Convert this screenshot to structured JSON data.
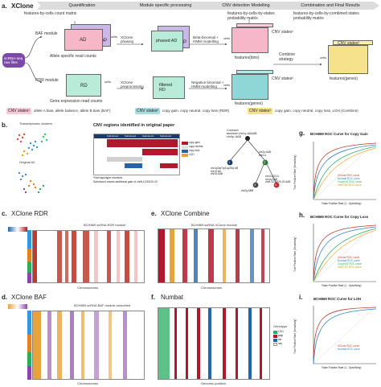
{
  "panel_a": {
    "letter": "a.",
    "title": "XClone",
    "stages": [
      "Quantification",
      "Module specific processing",
      "CNV detection Modelling",
      "Combination and Final Results"
    ],
    "matrix_top": "features-by-cells count matrix",
    "matrix_prob": "features-by-cells-by-states\nprobability matrix",
    "matrix_combined": "features-by-cells-by-combined states\nprobability matrix",
    "input_label": "scRNA-seq\nraw files",
    "baf_module": "BAF module",
    "rdr_module": "RDR module",
    "allele_counts": "Allele specific read counts",
    "gene_counts": "Gene expression read counts",
    "ad": "AD",
    "dp": "DP",
    "phased_ad": "phased AD",
    "rd": "RD",
    "filtered_rd": "filtered\nRD",
    "xclone_phasing": "XClone\nphasing",
    "xclone_preproc": "XClone\npreprocessing",
    "beta_binomial": "Beta-binomial +\nHMM modelling",
    "neg_binomial": "Negative binomial +\nHMM modelling",
    "cnv_states1": "CNV states¹",
    "cnv_states2": "CNV states²",
    "cnv_states3": "CNV states³",
    "features_bins": "features(bins)",
    "features_genes": "features(genes)",
    "features_genes_final": "features(genes)",
    "cells": "cells",
    "combine": "Combine\nstrategy",
    "legend1_label": "CNV states¹",
    "legend1_text": "allele A bias, allele balance, allele B bias (BAF)",
    "legend2_label": "CNV states²",
    "legend2_text": "copy gain, copy neutral, copy loss (RDR)",
    "legend3_label": "CNV states³",
    "legend3_text": "copy gain, copy neutral, copy loss, LOH (Combine)",
    "colors": {
      "cnv1": "#f8c9d6",
      "cnv2": "#a8dde0",
      "cnv3": "#f6e28c",
      "purple": "#c9b8e8",
      "pink": "#f6b7c8",
      "mint": "#b8ecd8",
      "teal": "#8fd6d6",
      "input": "#7b4aa8"
    }
  },
  "panel_b": {
    "letter": "b.",
    "umap_title": "Transcriptomic clusters",
    "umap2_title": "Original #2",
    "table_title": "CNV regions identified in original paper",
    "subclones": [
      "Subclone1",
      "Subclone2",
      "Subclone3",
      "Subclone4"
    ],
    "rows": [
      "chr1q",
      "chr3p",
      "chr4q",
      "chr5p",
      "chr8q",
      "chr10",
      "chr12",
      "chr13",
      "chr14",
      "chr18",
      "chr19",
      "chr20",
      "chr22"
    ],
    "table_legend": [
      "copy gain",
      "copy neutral",
      "copy loss",
      "LOH"
    ],
    "footnote1": "*Not haplotype resolved.",
    "footnote2": "Subclone4 shows additional gain of chr8-12/15/20-22",
    "tree_root": "Common\nancestor chr1q: AAAAB\nchr3p: AAB",
    "tree_n1": "1",
    "tree_n1_label": "chr1q/3q/7q/11q/25q AB\nchr10 AA\nchr16 AAB",
    "tree_n2": "2",
    "tree_n2_label": "chr2p AAB\nchr4 A",
    "tree_n3": "3",
    "tree_n3_label": "chr2q ABB",
    "tree_n4": "4",
    "tree_n4_label": "chr11q/13 A\nchr1q AAB\nchr8-12/15/20-22 AAB"
  },
  "panel_c": {
    "letter": "c.",
    "title": "XClone RDR",
    "heat_title": "BCH869 scRNA RDR module",
    "xlabel": "Chromosomes"
  },
  "panel_d": {
    "letter": "d.",
    "title": "XClone BAF",
    "heat_title": "BCH869 scRNA BAF module smoothed",
    "xlabel": "Chromosomes"
  },
  "panel_e": {
    "letter": "e.",
    "title": "XClone Combine",
    "heat_title": "BCH869 scRNA XClone module",
    "xlabel": "Chromosomes"
  },
  "panel_f": {
    "letter": "f.",
    "title": "Numbat",
    "xlabel": "Genomic position",
    "legend_title": "Genotype",
    "legend_items": [
      "LOH",
      "amp",
      "del",
      "neu"
    ]
  },
  "panel_g": {
    "letter": "g.",
    "title": "BCH869 ROC Curve for Copy Gain",
    "xlabel": "False Positive Rate (1 - Specificity)",
    "ylabel": "True Positive Rate (Sensitivity)",
    "legend": [
      "XClone ROC curve",
      "Numbat ROC curve",
      "CopyKAT ROC curve",
      "InferCNV ROC curve"
    ]
  },
  "panel_h": {
    "letter": "h.",
    "title": "BCH869 ROC Curve for Copy Loss",
    "xlabel": "False Positive Rate (1 - Specificity)",
    "ylabel": "True Positive Rate (Sensitivity)",
    "legend": [
      "XClone ROC curve",
      "Numbat ROC curve",
      "CopyKAT ROC curve",
      "InferCNV ROC curve"
    ]
  },
  "panel_i": {
    "letter": "i.",
    "title": "BCH869 ROC Curve for LOH",
    "xlabel": "False Positive Rate (1 - Specificity)",
    "ylabel": "True Positive Rate (Sensitivity)",
    "legend": [
      "XClone ROC curve",
      "Numbat ROC curve"
    ]
  },
  "roc_colors": {
    "xclone": "#c0392b",
    "numbat": "#2e86c1",
    "copykat": "#27ae60",
    "infercnv": "#f5b041"
  },
  "heat_colors": {
    "gain": "#b2182b",
    "loss": "#2166ac",
    "loh": "#e8a23a",
    "neutral": "#ffffff",
    "light": "#f2c6c6"
  }
}
